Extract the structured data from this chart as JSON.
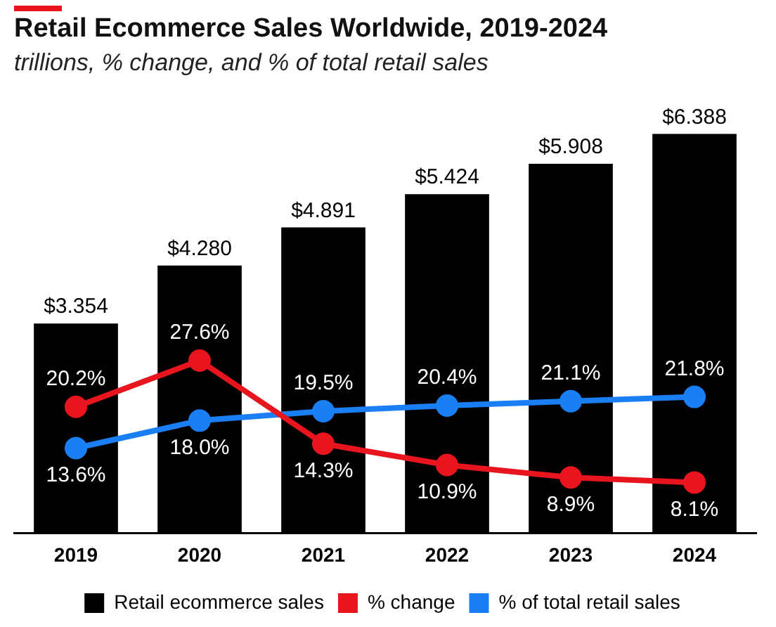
{
  "chart_data": {
    "type": "bar",
    "title": "Retail Ecommerce Sales Worldwide, 2019-2024",
    "subtitle": "trillions, % change, and % of total retail sales",
    "categories": [
      "2019",
      "2020",
      "2021",
      "2022",
      "2023",
      "2024"
    ],
    "series": [
      {
        "name": "Retail ecommerce sales",
        "color": "#000000",
        "values": [
          3.354,
          4.28,
          4.891,
          5.424,
          5.908,
          6.388
        ],
        "value_labels": [
          "$3.354",
          "$4.280",
          "$4.891",
          "$5.424",
          "$5.908",
          "$6.388"
        ]
      },
      {
        "name": "% change",
        "type": "line",
        "axis": "y2",
        "color": "#e8141e",
        "values": [
          20.2,
          27.6,
          14.3,
          10.9,
          8.9,
          8.1
        ],
        "value_labels": [
          "20.2%",
          "27.6%",
          "14.3%",
          "10.9%",
          "8.9%",
          "8.1%"
        ]
      },
      {
        "name": "% of total retail sales",
        "type": "line",
        "axis": "y2",
        "color": "#1a7ff5",
        "values": [
          13.6,
          18.0,
          19.5,
          20.4,
          21.1,
          21.8
        ],
        "value_labels": [
          "13.6%",
          "18.0%",
          "19.5%",
          "20.4%",
          "21.1%",
          "21.8%"
        ]
      }
    ],
    "tick_labels": "x",
    "grid": false,
    "legend": "bottom",
    "marker": "circle",
    "line_style": "solid"
  }
}
